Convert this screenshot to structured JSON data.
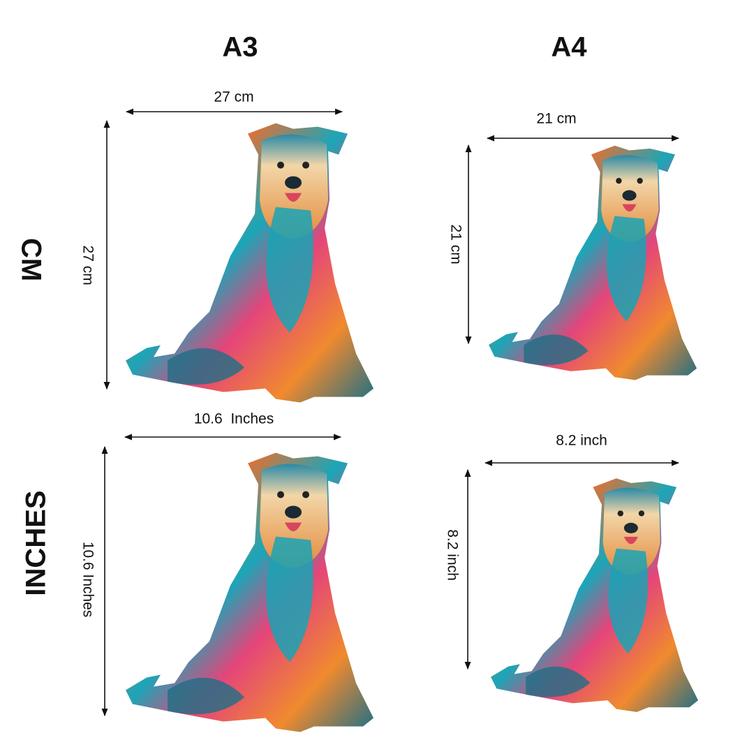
{
  "columns": [
    "A3",
    "A4"
  ],
  "rows": [
    "CM",
    "INCHES"
  ],
  "panels": [
    {
      "width_label": "27 cm",
      "height_label": "27 cm"
    },
    {
      "width_label": "21 cm",
      "height_label": "21 cm"
    },
    {
      "width_label": "10.6  Inches",
      "height_label": "10.6 Inches"
    },
    {
      "width_label": "8.2 inch",
      "height_label": "8.2 inch"
    }
  ]
}
